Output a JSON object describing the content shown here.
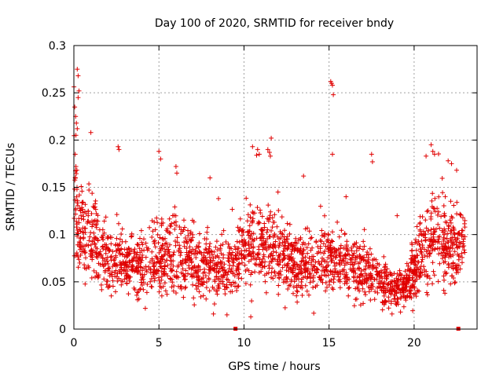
{
  "chart_data": {
    "type": "scatter",
    "title": "Day 100 of 2020, SRMTID for receiver bndy",
    "xlabel": "GPS time / hours",
    "ylabel": "SRMTID / TECUs",
    "xlim": [
      0,
      23.7
    ],
    "ylim": [
      0,
      0.3
    ],
    "xticks": [
      0,
      5,
      10,
      15,
      20
    ],
    "xtick_labels": [
      "0",
      "5",
      "10",
      "15",
      "20"
    ],
    "yticks": [
      0,
      0.05,
      0.1,
      0.15,
      0.2,
      0.25,
      0.3
    ],
    "ytick_labels": [
      "0",
      "0.05",
      "0.1",
      "0.15",
      "0.2",
      "0.25",
      "0.3"
    ],
    "grid": true,
    "marker": "plus",
    "color": "#e00000",
    "baseline_markers_x": [
      9.5,
      22.6
    ],
    "profile": {
      "hours": [
        0,
        0.15,
        0.4,
        0.8,
        1.2,
        2,
        3,
        4,
        5,
        6,
        7,
        8,
        9,
        10,
        10.5,
        11,
        12,
        13,
        14,
        15,
        16,
        17,
        17.5,
        18,
        18.7,
        19.5,
        20,
        20.5,
        21,
        21.5,
        22,
        22.5,
        23
      ],
      "center": [
        0.17,
        0.12,
        0.105,
        0.1,
        0.095,
        0.07,
        0.065,
        0.07,
        0.075,
        0.08,
        0.068,
        0.065,
        0.06,
        0.085,
        0.09,
        0.09,
        0.08,
        0.07,
        0.068,
        0.075,
        0.07,
        0.06,
        0.058,
        0.055,
        0.04,
        0.045,
        0.06,
        0.085,
        0.1,
        0.095,
        0.09,
        0.085,
        0.1
      ],
      "spread": [
        0.05,
        0.035,
        0.03,
        0.03,
        0.025,
        0.02,
        0.018,
        0.02,
        0.022,
        0.025,
        0.02,
        0.02,
        0.018,
        0.025,
        0.028,
        0.025,
        0.022,
        0.02,
        0.02,
        0.02,
        0.018,
        0.018,
        0.015,
        0.015,
        0.012,
        0.012,
        0.018,
        0.025,
        0.03,
        0.03,
        0.025,
        0.025,
        0.02
      ]
    },
    "outliers": [
      [
        0.05,
        0.235
      ],
      [
        0.1,
        0.225
      ],
      [
        0.15,
        0.218
      ],
      [
        0.2,
        0.212
      ],
      [
        0.12,
        0.205
      ],
      [
        0.2,
        0.275
      ],
      [
        0.25,
        0.268
      ],
      [
        0.3,
        0.252
      ],
      [
        0.25,
        0.245
      ],
      [
        0.08,
        0.185
      ],
      [
        0.12,
        0.172
      ],
      [
        0.18,
        0.168
      ],
      [
        1.0,
        0.208
      ],
      [
        2.6,
        0.193
      ],
      [
        2.65,
        0.19
      ],
      [
        5.0,
        0.188
      ],
      [
        5.1,
        0.18
      ],
      [
        6.0,
        0.172
      ],
      [
        6.05,
        0.165
      ],
      [
        8.0,
        0.16
      ],
      [
        10.5,
        0.193
      ],
      [
        10.8,
        0.19
      ],
      [
        10.9,
        0.185
      ],
      [
        11.4,
        0.19
      ],
      [
        11.5,
        0.187
      ],
      [
        11.6,
        0.202
      ],
      [
        11.55,
        0.183
      ],
      [
        13.5,
        0.162
      ],
      [
        15.1,
        0.262
      ],
      [
        15.15,
        0.26
      ],
      [
        15.2,
        0.258
      ],
      [
        15.25,
        0.248
      ],
      [
        15.2,
        0.185
      ],
      [
        17.5,
        0.185
      ],
      [
        17.55,
        0.177
      ],
      [
        20.7,
        0.183
      ],
      [
        21.0,
        0.195
      ],
      [
        21.1,
        0.188
      ],
      [
        21.2,
        0.185
      ],
      [
        22.0,
        0.178
      ],
      [
        22.2,
        0.175
      ],
      [
        22.5,
        0.168
      ],
      [
        8.5,
        0.138
      ],
      [
        12.0,
        0.145
      ],
      [
        14.5,
        0.13
      ],
      [
        16.0,
        0.14
      ],
      [
        19.0,
        0.12
      ],
      [
        9.0,
        0.015
      ],
      [
        10.4,
        0.013
      ],
      [
        18.7,
        0.016
      ],
      [
        19.2,
        0.018
      ],
      [
        4.2,
        0.022
      ]
    ]
  }
}
